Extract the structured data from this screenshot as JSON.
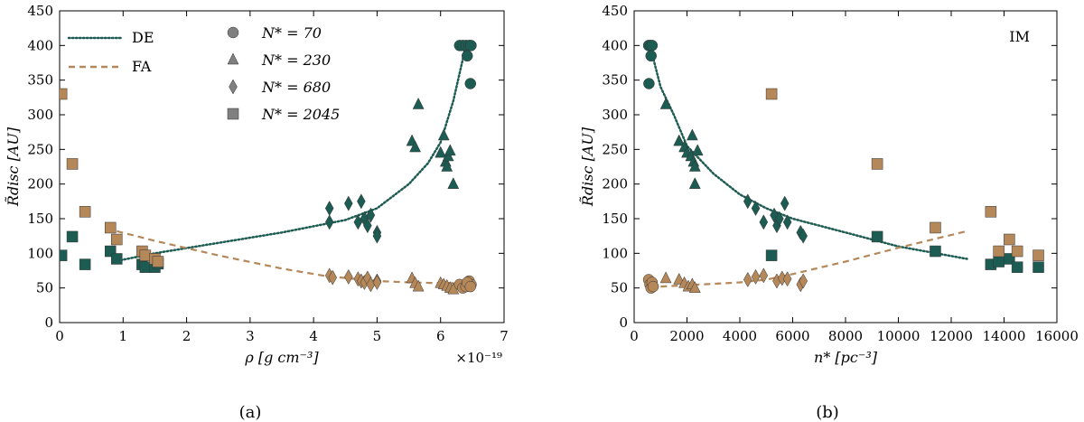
{
  "colors": {
    "DE": "#1d5c52",
    "FA": "#b5885a",
    "legend_gray": "#808080"
  },
  "chart_data": [
    {
      "panel": "a",
      "type": "scatter",
      "caption": "(a)",
      "xlabel": "ρ [g cm⁻³]",
      "ylabel": "R̃disc [AU]",
      "x_multiplier": "×10⁻¹⁹",
      "xlim": [
        0,
        7
      ],
      "ylim": [
        0,
        450
      ],
      "xticks": [
        0,
        1,
        2,
        3,
        4,
        5,
        6,
        7
      ],
      "yticks": [
        0,
        50,
        100,
        150,
        200,
        250,
        300,
        350,
        400,
        450
      ],
      "annotation": "",
      "legend": {
        "lines": [
          {
            "key": "DE",
            "label": "DE",
            "style": "dotted"
          },
          {
            "key": "FA",
            "label": "FA",
            "style": "dashed"
          }
        ],
        "markers": [
          {
            "marker": "circle",
            "label": "N* = 70"
          },
          {
            "marker": "triangle",
            "label": "N* = 230"
          },
          {
            "marker": "diamond",
            "label": "N* = 680"
          },
          {
            "marker": "square",
            "label": "N* = 2045"
          }
        ]
      },
      "fit_lines": [
        {
          "name": "DE",
          "style": "dotted",
          "x": [
            0.85,
            1.5,
            2.5,
            3.5,
            4.5,
            5.0,
            5.5,
            5.8,
            6.0,
            6.2,
            6.4
          ],
          "y": [
            88,
            100,
            115,
            130,
            148,
            165,
            200,
            230,
            260,
            320,
            400
          ]
        },
        {
          "name": "FA",
          "style": "dashed",
          "x": [
            0.9,
            1.5,
            2.5,
            3.5,
            4.2,
            5.0,
            5.5,
            6.0,
            6.4
          ],
          "y": [
            132,
            118,
            97,
            78,
            67,
            60,
            58,
            57,
            57
          ]
        }
      ],
      "series": [
        {
          "name": "DE",
          "marker": "square",
          "points": [
            [
              0.03,
              97
            ],
            [
              0.2,
              124
            ],
            [
              0.4,
              84
            ],
            [
              0.8,
              103
            ],
            [
              0.9,
              92
            ],
            [
              1.3,
              84
            ],
            [
              1.35,
              80
            ],
            [
              1.5,
              80
            ],
            [
              1.55,
              85
            ]
          ]
        },
        {
          "name": "DE",
          "marker": "diamond",
          "points": [
            [
              4.25,
              165
            ],
            [
              4.25,
              145
            ],
            [
              4.55,
              172
            ],
            [
              4.7,
              145
            ],
            [
              4.75,
              175
            ],
            [
              4.8,
              150
            ],
            [
              4.85,
              140
            ],
            [
              4.9,
              155
            ],
            [
              5.0,
              130
            ],
            [
              5.0,
              125
            ]
          ]
        },
        {
          "name": "DE",
          "marker": "triangle",
          "points": [
            [
              5.55,
              262
            ],
            [
              5.6,
              253
            ],
            [
              5.65,
              315
            ],
            [
              6.0,
              245
            ],
            [
              6.05,
              270
            ],
            [
              6.08,
              232
            ],
            [
              6.1,
              225
            ],
            [
              6.12,
              240
            ],
            [
              6.15,
              248
            ],
            [
              6.2,
              200
            ]
          ]
        },
        {
          "name": "DE",
          "marker": "circle",
          "points": [
            [
              6.3,
              400
            ],
            [
              6.35,
              400
            ],
            [
              6.4,
              400
            ],
            [
              6.45,
              400
            ],
            [
              6.48,
              400
            ],
            [
              6.42,
              385
            ],
            [
              6.47,
              345
            ]
          ]
        },
        {
          "name": "FA",
          "marker": "square",
          "points": [
            [
              0.03,
              330
            ],
            [
              0.2,
              229
            ],
            [
              0.4,
              160
            ],
            [
              0.8,
              137
            ],
            [
              0.9,
              120
            ],
            [
              1.3,
              103
            ],
            [
              1.35,
              97
            ],
            [
              1.5,
              92
            ],
            [
              1.55,
              88
            ]
          ]
        },
        {
          "name": "FA",
          "marker": "diamond",
          "points": [
            [
              4.25,
              68
            ],
            [
              4.3,
              65
            ],
            [
              4.55,
              66
            ],
            [
              4.7,
              63
            ],
            [
              4.75,
              60
            ],
            [
              4.8,
              58
            ],
            [
              4.85,
              64
            ],
            [
              4.9,
              55
            ],
            [
              5.0,
              60
            ],
            [
              5.0,
              58
            ]
          ]
        },
        {
          "name": "FA",
          "marker": "triangle",
          "points": [
            [
              5.55,
              64
            ],
            [
              5.6,
              57
            ],
            [
              5.65,
              52
            ],
            [
              6.0,
              57
            ],
            [
              6.05,
              55
            ],
            [
              6.1,
              53
            ],
            [
              6.15,
              50
            ],
            [
              6.2,
              48
            ]
          ]
        },
        {
          "name": "FA",
          "marker": "circle",
          "points": [
            [
              6.3,
              55
            ],
            [
              6.35,
              50
            ],
            [
              6.4,
              52
            ],
            [
              6.45,
              60
            ],
            [
              6.48,
              55
            ],
            [
              6.42,
              58
            ],
            [
              6.47,
              52
            ]
          ]
        }
      ]
    },
    {
      "panel": "b",
      "type": "scatter",
      "caption": "(b)",
      "xlabel": "n* [pc⁻³]",
      "ylabel": "R̃disc [AU]",
      "x_multiplier": "",
      "xlim": [
        0,
        16000
      ],
      "ylim": [
        0,
        450
      ],
      "xticks": [
        0,
        2000,
        4000,
        6000,
        8000,
        10000,
        12000,
        14000,
        16000
      ],
      "yticks": [
        0,
        50,
        100,
        150,
        200,
        250,
        300,
        350,
        400,
        450
      ],
      "annotation": "IM",
      "legend": null,
      "fit_lines": [
        {
          "name": "DE",
          "style": "dotted",
          "x": [
            600,
            1000,
            1500,
            2000,
            3000,
            4000,
            5000,
            6000,
            8000,
            10000,
            12600
          ],
          "y": [
            400,
            340,
            300,
            255,
            215,
            185,
            165,
            150,
            130,
            110,
            92
          ]
        },
        {
          "name": "FA",
          "style": "dashed",
          "x": [
            600,
            1000,
            2000,
            3000,
            4000,
            5000,
            6000,
            8000,
            10000,
            12600
          ],
          "y": [
            50,
            52,
            54,
            56,
            58,
            62,
            70,
            88,
            108,
            132
          ]
        }
      ],
      "series": [
        {
          "name": "DE",
          "marker": "circle",
          "points": [
            [
              550,
              400
            ],
            [
              620,
              400
            ],
            [
              680,
              400
            ],
            [
              640,
              385
            ],
            [
              560,
              345
            ]
          ]
        },
        {
          "name": "DE",
          "marker": "triangle",
          "points": [
            [
              1200,
              315
            ],
            [
              1700,
              262
            ],
            [
              1900,
              253
            ],
            [
              2000,
              245
            ],
            [
              2150,
              240
            ],
            [
              2200,
              270
            ],
            [
              2250,
              232
            ],
            [
              2300,
              225
            ],
            [
              2400,
              248
            ],
            [
              2300,
              200
            ]
          ]
        },
        {
          "name": "DE",
          "marker": "diamond",
          "points": [
            [
              4300,
              175
            ],
            [
              4600,
              165
            ],
            [
              4900,
              145
            ],
            [
              5300,
              155
            ],
            [
              5400,
              140
            ],
            [
              5500,
              150
            ],
            [
              5700,
              172
            ],
            [
              5800,
              145
            ],
            [
              6300,
              130
            ],
            [
              6400,
              125
            ]
          ]
        },
        {
          "name": "DE",
          "marker": "square",
          "points": [
            [
              5200,
              97
            ],
            [
              9200,
              124
            ],
            [
              11400,
              103
            ],
            [
              13500,
              84
            ],
            [
              13800,
              88
            ],
            [
              14200,
              92
            ],
            [
              14500,
              80
            ],
            [
              15300,
              80
            ]
          ]
        },
        {
          "name": "FA",
          "marker": "circle",
          "points": [
            [
              550,
              62
            ],
            [
              600,
              55
            ],
            [
              640,
              50
            ],
            [
              680,
              58
            ],
            [
              720,
              52
            ]
          ]
        },
        {
          "name": "FA",
          "marker": "triangle",
          "points": [
            [
              1200,
              64
            ],
            [
              1700,
              62
            ],
            [
              1900,
              57
            ],
            [
              2050,
              52
            ],
            [
              2200,
              55
            ],
            [
              2300,
              50
            ]
          ]
        },
        {
          "name": "FA",
          "marker": "diamond",
          "points": [
            [
              4300,
              62
            ],
            [
              4600,
              66
            ],
            [
              4900,
              68
            ],
            [
              5400,
              60
            ],
            [
              5600,
              64
            ],
            [
              5800,
              63
            ],
            [
              6300,
              55
            ],
            [
              6400,
              60
            ]
          ]
        },
        {
          "name": "FA",
          "marker": "square",
          "points": [
            [
              5200,
              330
            ],
            [
              9200,
              229
            ],
            [
              11400,
              137
            ],
            [
              13500,
              160
            ],
            [
              13800,
              103
            ],
            [
              14200,
              120
            ],
            [
              14500,
              103
            ],
            [
              15300,
              97
            ]
          ]
        }
      ]
    }
  ]
}
